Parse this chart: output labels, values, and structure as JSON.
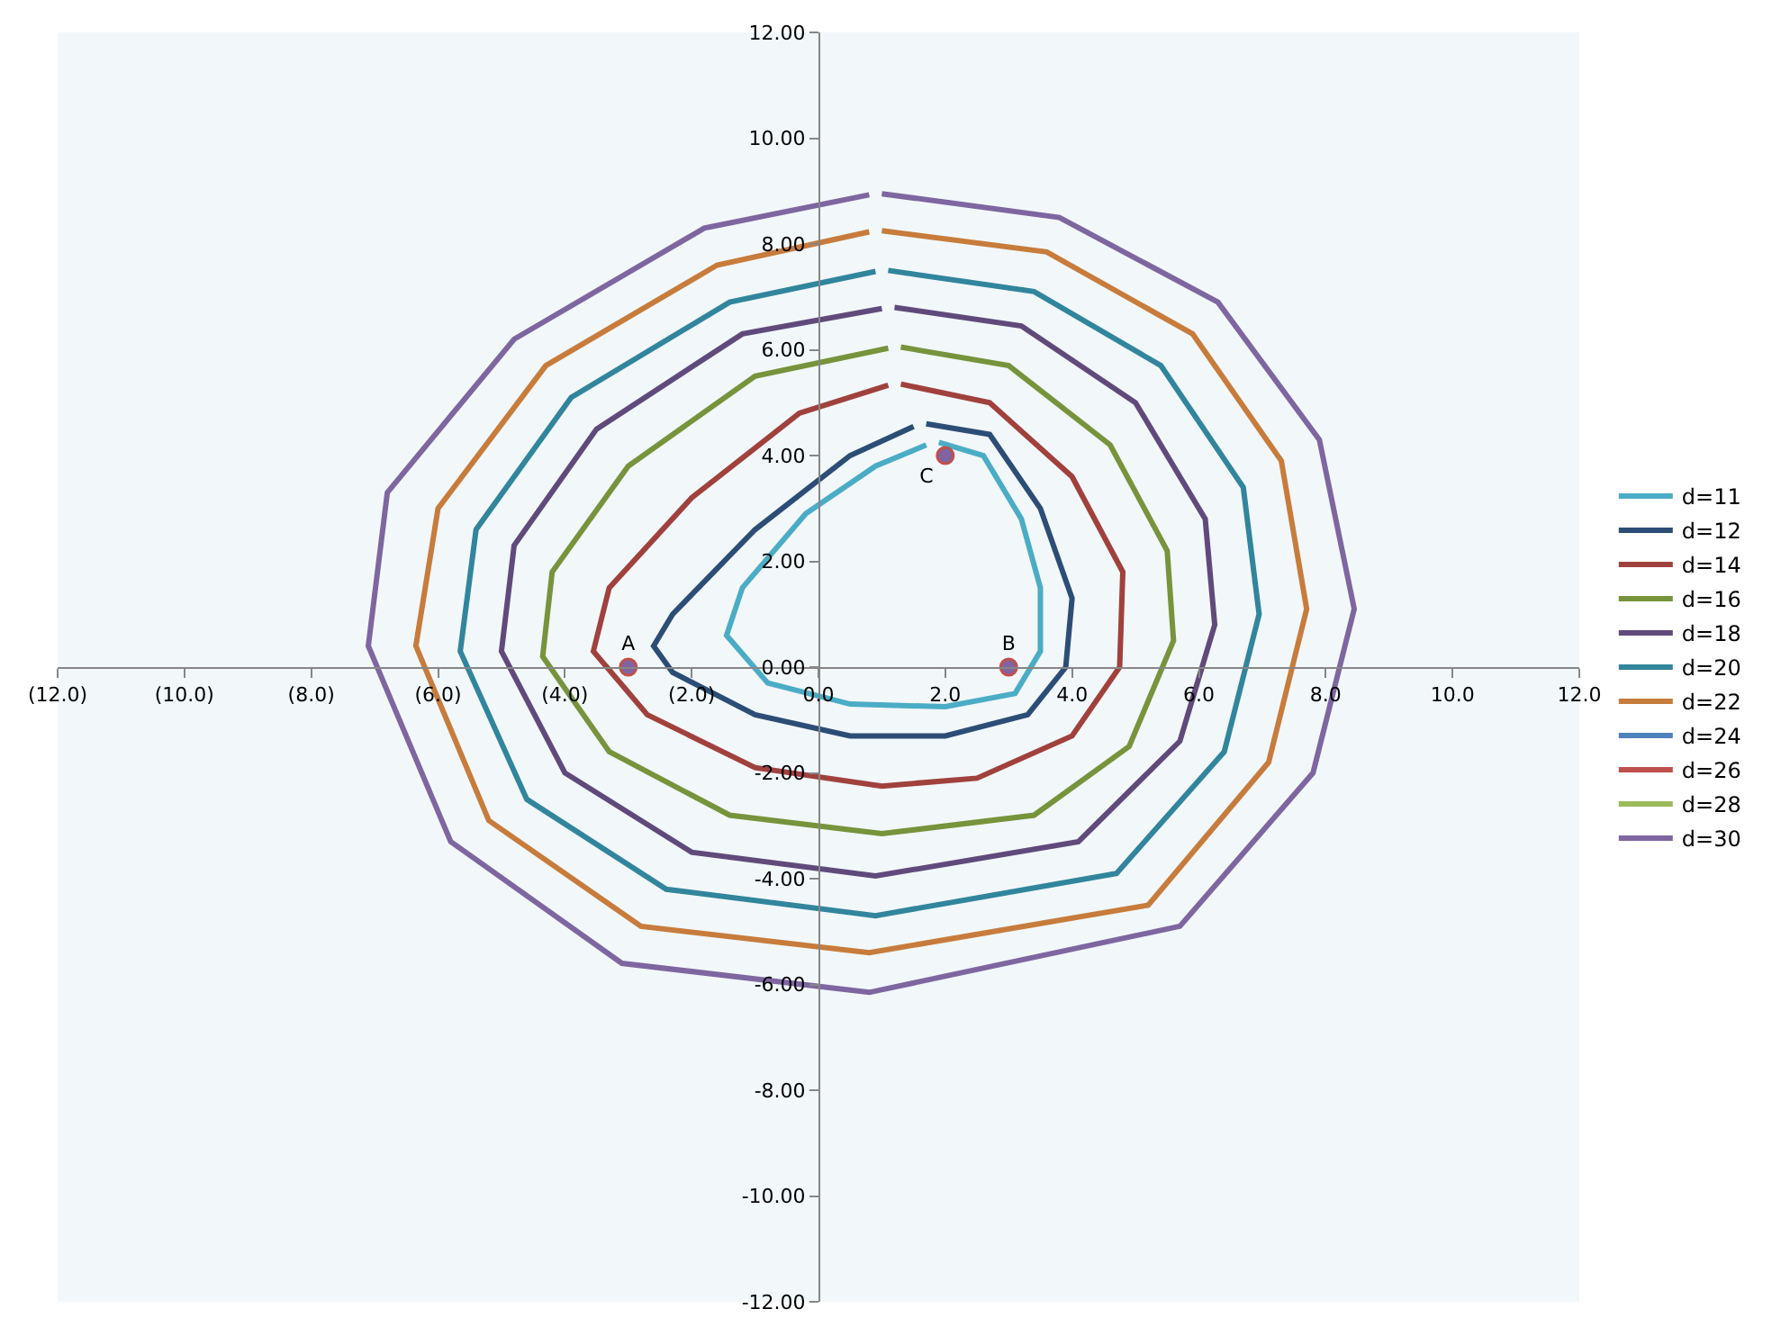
{
  "chart_data": {
    "type": "line",
    "xlim": [
      -12,
      12
    ],
    "ylim": [
      -12,
      12
    ],
    "xticks": [
      {
        "value": -12,
        "label": "(12.0)"
      },
      {
        "value": -10,
        "label": "(10.0)"
      },
      {
        "value": -8,
        "label": "(8.0)"
      },
      {
        "value": -6,
        "label": "(6.0)"
      },
      {
        "value": -4,
        "label": "(4.0)"
      },
      {
        "value": -2,
        "label": "(2.0)"
      },
      {
        "value": 0,
        "label": "0.0"
      },
      {
        "value": 2,
        "label": "2.0"
      },
      {
        "value": 4,
        "label": "4.0"
      },
      {
        "value": 6,
        "label": "6.0"
      },
      {
        "value": 8,
        "label": "8.0"
      },
      {
        "value": 10,
        "label": "10.0"
      },
      {
        "value": 12,
        "label": "12.0"
      }
    ],
    "yticks": [
      {
        "value": -12,
        "label": "-12.00"
      },
      {
        "value": -10,
        "label": "-10.00"
      },
      {
        "value": -8,
        "label": "-8.00"
      },
      {
        "value": -6,
        "label": "-6.00"
      },
      {
        "value": -4,
        "label": "-4.00"
      },
      {
        "value": -2,
        "label": "-2.00"
      },
      {
        "value": 0,
        "label": "0.00"
      },
      {
        "value": 2,
        "label": "2.00"
      },
      {
        "value": 4,
        "label": "4.00"
      },
      {
        "value": 6,
        "label": "6.00"
      },
      {
        "value": 8,
        "label": "8.00"
      },
      {
        "value": 10,
        "label": "10.00"
      },
      {
        "value": 12,
        "label": "12.00"
      }
    ],
    "grid": false,
    "legend": "right",
    "marker": "none",
    "line_style": "solid",
    "series": [
      {
        "name": "d=11",
        "color": "#4bacc6",
        "x": [
          1.9,
          2.6,
          3.2,
          3.5,
          3.5,
          3.1,
          2.0,
          0.5,
          -0.8,
          -1.45,
          -1.2,
          -0.2,
          0.9,
          1.7
        ],
        "values": [
          4.25,
          4.0,
          2.8,
          1.5,
          0.3,
          -0.5,
          -0.75,
          -0.7,
          -0.3,
          0.6,
          1.5,
          2.9,
          3.8,
          4.2
        ]
      },
      {
        "name": "d=12",
        "color": "#2c4d75",
        "x": [
          1.7,
          2.7,
          3.5,
          4.0,
          3.9,
          3.3,
          2.0,
          0.5,
          -1.0,
          -2.3,
          -2.6,
          -2.3,
          -1.0,
          0.5,
          1.5
        ],
        "values": [
          4.6,
          4.4,
          3.0,
          1.3,
          0.0,
          -0.9,
          -1.3,
          -1.3,
          -0.9,
          -0.1,
          0.4,
          1.0,
          2.6,
          4.0,
          4.55
        ]
      },
      {
        "name": "d=14",
        "color": "#a0413d",
        "x": [
          1.3,
          2.7,
          4.0,
          4.8,
          4.75,
          4.0,
          2.5,
          1.0,
          -1.0,
          -2.7,
          -3.55,
          -3.3,
          -2.0,
          -0.3,
          1.1
        ],
        "values": [
          5.35,
          5.0,
          3.6,
          1.8,
          0.0,
          -1.3,
          -2.1,
          -2.25,
          -1.9,
          -0.9,
          0.3,
          1.5,
          3.2,
          4.8,
          5.33
        ]
      },
      {
        "name": "d=16",
        "color": "#77933c",
        "x": [
          1.3,
          3.0,
          4.6,
          5.5,
          5.6,
          4.9,
          3.4,
          1.0,
          -1.4,
          -3.3,
          -4.35,
          -4.2,
          -3.0,
          -1.0,
          1.1
        ],
        "values": [
          6.05,
          5.7,
          4.2,
          2.2,
          0.5,
          -1.5,
          -2.8,
          -3.15,
          -2.8,
          -1.6,
          0.2,
          1.8,
          3.8,
          5.5,
          6.03
        ]
      },
      {
        "name": "d=18",
        "color": "#604a7b",
        "x": [
          1.2,
          3.2,
          5.0,
          6.1,
          6.25,
          5.7,
          4.1,
          0.9,
          -2.0,
          -4.0,
          -5.0,
          -4.8,
          -3.5,
          -1.2,
          1.0
        ],
        "values": [
          6.8,
          6.45,
          5.0,
          2.8,
          0.8,
          -1.4,
          -3.3,
          -3.95,
          -3.5,
          -2.0,
          0.3,
          2.3,
          4.5,
          6.3,
          6.78
        ]
      },
      {
        "name": "d=20",
        "color": "#31859c",
        "x": [
          1.1,
          3.4,
          5.4,
          6.7,
          6.95,
          6.4,
          4.7,
          0.9,
          -2.4,
          -4.6,
          -5.65,
          -5.4,
          -3.9,
          -1.4,
          0.9
        ],
        "values": [
          7.5,
          7.1,
          5.7,
          3.4,
          1.0,
          -1.6,
          -3.9,
          -4.7,
          -4.2,
          -2.5,
          0.3,
          2.6,
          5.1,
          6.9,
          7.48
        ]
      },
      {
        "name": "d=22",
        "color": "#c77c3c",
        "x": [
          1.0,
          3.6,
          5.9,
          7.3,
          7.7,
          7.1,
          5.2,
          0.8,
          -2.8,
          -5.2,
          -6.35,
          -6.0,
          -4.3,
          -1.6,
          0.8
        ],
        "values": [
          8.25,
          7.85,
          6.3,
          3.9,
          1.1,
          -1.8,
          -4.5,
          -5.4,
          -4.9,
          -2.9,
          0.4,
          3.0,
          5.7,
          7.6,
          8.23
        ]
      },
      {
        "name": "d=24",
        "color": "#4f81bd",
        "x": [
          null
        ],
        "values": [
          null
        ]
      },
      {
        "name": "d=26",
        "color": "#c0504d",
        "x": [
          null
        ],
        "values": [
          null
        ]
      },
      {
        "name": "d=28",
        "color": "#9bbb59",
        "x": [
          null
        ],
        "values": [
          null
        ]
      },
      {
        "name": "d=30",
        "color": "#7e66a0",
        "x": [
          1.0,
          3.8,
          6.3,
          7.9,
          8.45,
          7.8,
          5.7,
          0.8,
          -3.1,
          -5.8,
          -7.1,
          -6.8,
          -4.8,
          -1.8,
          0.8
        ],
        "values": [
          8.95,
          8.5,
          6.9,
          4.3,
          1.1,
          -2.0,
          -4.9,
          -6.15,
          -5.6,
          -3.3,
          0.4,
          3.3,
          6.2,
          8.3,
          8.93
        ]
      },
      {
        "type": "scatter",
        "marker": "circle",
        "color": "#8064a2",
        "x": [
          -3,
          3,
          2
        ],
        "values": [
          0,
          0,
          4
        ],
        "value_labels": [
          "A",
          "B",
          "C"
        ]
      }
    ]
  }
}
